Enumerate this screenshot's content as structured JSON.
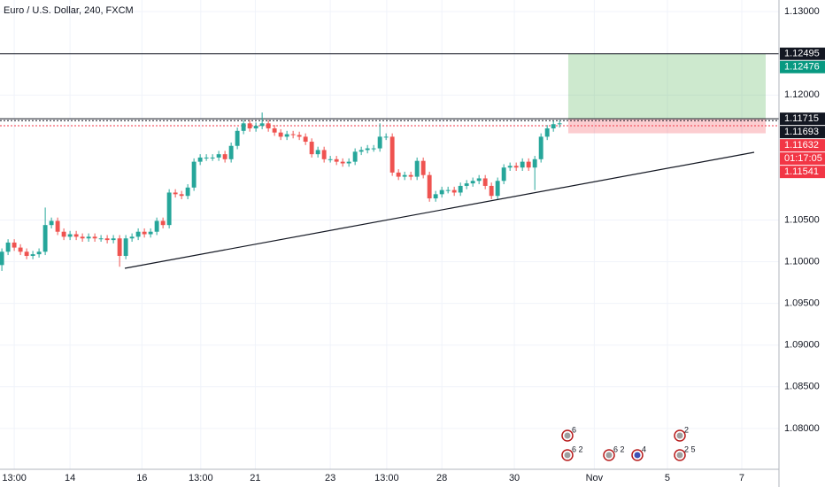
{
  "chart_data": {
    "type": "candlestick",
    "title": "Euro / U.S. Dollar, 240, FXCM",
    "up_color": "#26a69a",
    "down_color": "#ef5350",
    "grid": true,
    "open": [
      1.0996,
      1.1012,
      1.1023,
      1.1017,
      1.1012,
      1.1007,
      1.1009,
      1.1012,
      1.1044,
      1.1049,
      1.1036,
      1.103,
      1.1033,
      1.103,
      1.1028,
      1.103,
      1.1028,
      1.1028,
      1.1026,
      1.1028,
      1.1007,
      1.1028,
      1.103,
      1.1036,
      1.1033,
      1.1036,
      1.1049,
      1.1044,
      1.1083,
      1.1081,
      1.1079,
      1.1089,
      1.112,
      1.1125,
      1.1125,
      1.1125,
      1.1129,
      1.1123,
      1.1139,
      1.1157,
      1.1166,
      1.116,
      1.1163,
      1.1166,
      1.116,
      1.1155,
      1.115,
      1.1153,
      1.1152,
      1.115,
      1.1144,
      1.1129,
      1.1134,
      1.1123,
      1.1123,
      1.112,
      1.1118,
      1.112,
      1.1132,
      1.1134,
      1.1136,
      1.1136,
      1.115,
      1.115,
      1.1107,
      1.1102,
      1.1104,
      1.1102,
      1.1121,
      1.1104,
      1.1076,
      1.1081,
      1.1086,
      1.1086,
      1.1083,
      1.1091,
      1.1094,
      1.1097,
      1.11,
      1.1091,
      1.1079,
      1.1097,
      1.1113,
      1.1115,
      1.1113,
      1.112,
      1.1113,
      1.1123,
      1.115,
      1.116,
      1.1165
    ],
    "high": [
      1.1016,
      1.1027,
      1.1027,
      1.1021,
      1.1016,
      1.1013,
      1.1016,
      1.1065,
      1.1053,
      1.1053,
      1.104,
      1.1037,
      1.1037,
      1.1034,
      1.1034,
      1.1034,
      1.1032,
      1.1032,
      1.1032,
      1.1032,
      1.1032,
      1.1034,
      1.104,
      1.104,
      1.104,
      1.1053,
      1.1053,
      1.1087,
      1.1087,
      1.1085,
      1.1093,
      1.1124,
      1.1129,
      1.1129,
      1.1129,
      1.1133,
      1.1133,
      1.1143,
      1.1161,
      1.117,
      1.117,
      1.1167,
      1.1179,
      1.117,
      1.1164,
      1.1159,
      1.1157,
      1.1157,
      1.1156,
      1.1154,
      1.1148,
      1.1138,
      1.1138,
      1.1127,
      1.1127,
      1.1124,
      1.1124,
      1.1136,
      1.1138,
      1.114,
      1.114,
      1.1166,
      1.1154,
      1.1154,
      1.1111,
      1.1108,
      1.1108,
      1.1125,
      1.1125,
      1.1108,
      1.1085,
      1.109,
      1.109,
      1.109,
      1.1095,
      1.1098,
      1.1101,
      1.1104,
      1.1104,
      1.1095,
      1.1101,
      1.1117,
      1.1119,
      1.1119,
      1.1124,
      1.1124,
      1.1127,
      1.1154,
      1.1164,
      1.1169,
      1.117
    ],
    "low": [
      1.0989,
      1.1008,
      1.1013,
      1.1008,
      1.1003,
      1.1003,
      1.1005,
      1.1008,
      1.104,
      1.1032,
      1.1026,
      1.1026,
      1.1026,
      1.1024,
      1.1024,
      1.1024,
      1.1024,
      1.1022,
      1.1022,
      1.0994,
      1.1003,
      1.1024,
      1.1026,
      1.1029,
      1.1029,
      1.1032,
      1.104,
      1.104,
      1.1077,
      1.1075,
      1.1075,
      1.1085,
      1.1116,
      1.1121,
      1.1121,
      1.1121,
      1.1119,
      1.1119,
      1.1135,
      1.1153,
      1.1156,
      1.1156,
      1.1159,
      1.1156,
      1.1151,
      1.1146,
      1.1146,
      1.1148,
      1.1146,
      1.114,
      1.1125,
      1.1125,
      1.1119,
      1.1119,
      1.1116,
      1.1114,
      1.1114,
      1.1116,
      1.1128,
      1.113,
      1.1132,
      1.1132,
      1.1146,
      1.1103,
      1.1098,
      1.1098,
      1.1098,
      1.1098,
      1.11,
      1.1072,
      1.1072,
      1.1077,
      1.1082,
      1.1079,
      1.1079,
      1.1087,
      1.109,
      1.1093,
      1.1087,
      1.1075,
      1.1075,
      1.1093,
      1.1109,
      1.1109,
      1.1109,
      1.1109,
      1.1086,
      1.1119,
      1.1146,
      1.1156,
      1.1161
    ],
    "close": [
      1.1012,
      1.1023,
      1.1017,
      1.1012,
      1.1007,
      1.1009,
      1.1012,
      1.1044,
      1.1049,
      1.1036,
      1.103,
      1.1033,
      1.103,
      1.1028,
      1.103,
      1.1028,
      1.1028,
      1.1026,
      1.1028,
      1.1007,
      1.1028,
      1.103,
      1.1036,
      1.1033,
      1.1036,
      1.1049,
      1.1044,
      1.1083,
      1.1081,
      1.1079,
      1.1089,
      1.112,
      1.1125,
      1.1125,
      1.1125,
      1.1129,
      1.1123,
      1.1139,
      1.1157,
      1.1166,
      1.116,
      1.1163,
      1.1166,
      1.116,
      1.1155,
      1.115,
      1.1153,
      1.1152,
      1.115,
      1.1144,
      1.1129,
      1.1134,
      1.1123,
      1.1123,
      1.112,
      1.1118,
      1.112,
      1.1132,
      1.1134,
      1.1136,
      1.1136,
      1.115,
      1.115,
      1.1107,
      1.1102,
      1.1104,
      1.1102,
      1.1121,
      1.1104,
      1.1076,
      1.1081,
      1.1086,
      1.1086,
      1.1083,
      1.1091,
      1.1094,
      1.1097,
      1.11,
      1.1091,
      1.1079,
      1.1097,
      1.1113,
      1.1115,
      1.1113,
      1.112,
      1.1113,
      1.1123,
      1.115,
      1.116,
      1.1165,
      1.1166
    ],
    "xlim": [
      -0.3,
      125.4
    ],
    "xticks": [
      {
        "value": 2,
        "label": "13:00"
      },
      {
        "value": 11,
        "label": "14"
      },
      {
        "value": 22.6,
        "label": "16"
      },
      {
        "value": 32.1,
        "label": "13:00"
      },
      {
        "value": 40.9,
        "label": "21"
      },
      {
        "value": 53,
        "label": "23"
      },
      {
        "value": 62.1,
        "label": "13:00"
      },
      {
        "value": 71,
        "label": "28"
      },
      {
        "value": 82.7,
        "label": "30"
      },
      {
        "value": 95.6,
        "label": "Nov"
      },
      {
        "value": 107.4,
        "label": "5"
      },
      {
        "value": 119.4,
        "label": "7"
      }
    ],
    "ylim": [
      1.0751,
      1.1314
    ],
    "yticks": [
      {
        "value": 1.13,
        "label": "1.13000"
      },
      {
        "value": 1.12,
        "label": "1.12000"
      },
      {
        "value": 1.105,
        "label": "1.10500"
      },
      {
        "value": 1.1,
        "label": "1.10000"
      },
      {
        "value": 1.095,
        "label": "1.09500"
      },
      {
        "value": 1.09,
        "label": "1.09000"
      },
      {
        "value": 1.085,
        "label": "1.08500"
      },
      {
        "value": 1.08,
        "label": "1.08000"
      }
    ],
    "price_labels": [
      {
        "value": 1.12495,
        "label": "1.12495",
        "color": "#131722",
        "line": "solid"
      },
      {
        "value": 1.12476,
        "label": "1.12476",
        "color": "#089981"
      },
      {
        "value": 1.11715,
        "label": "1.11715",
        "color": "#131722",
        "line": "solid"
      },
      {
        "value": 1.11693,
        "label": "1.11693",
        "color": "#131722",
        "line": "dotted"
      },
      {
        "value": 1.11632,
        "label": "1.11632",
        "color": "#f23645",
        "line": "dotted"
      },
      {
        "value": 1.11541,
        "label": "1.11541",
        "color": "#f23645"
      }
    ],
    "countdown": "01:17:05",
    "events": [
      "6",
      "6 2",
      "6 2",
      "4",
      "2",
      "2 5"
    ]
  }
}
